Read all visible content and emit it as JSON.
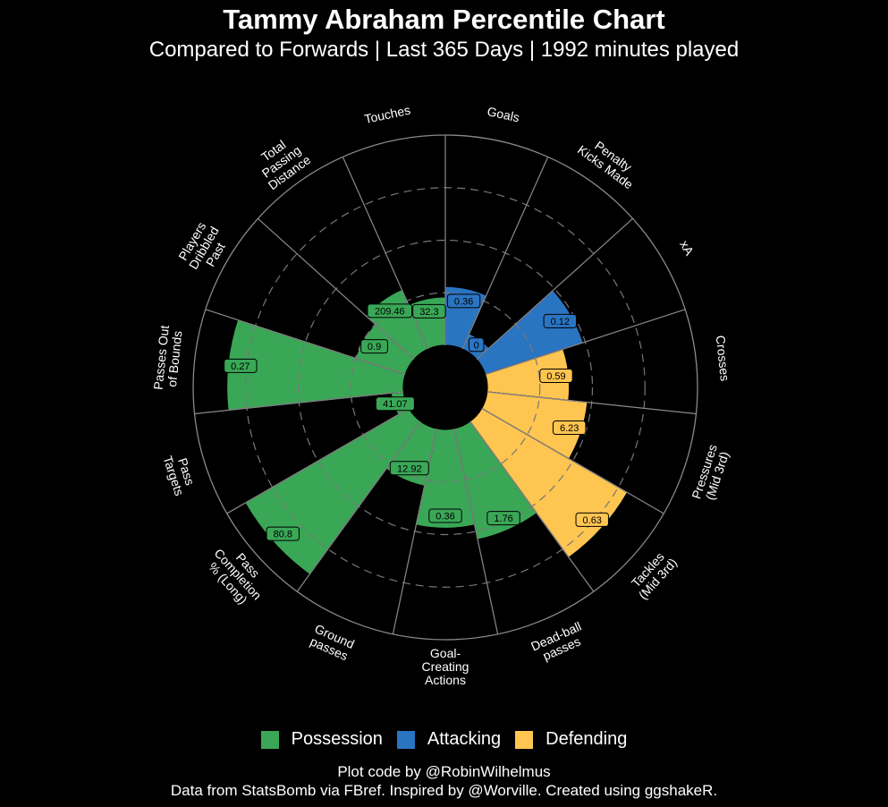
{
  "header": {
    "title": "Tammy Abraham Percentile Chart",
    "subtitle": "Compared to Forwards | Last 365 Days | 1992 minutes played"
  },
  "colors": {
    "Possession": "#3aa757",
    "Attacking": "#2a75c2",
    "Defending": "#ffc551",
    "grid": "#8a8a8a",
    "background": "#000000"
  },
  "legend": {
    "position": "bottom",
    "items": [
      {
        "label": "Possession",
        "color": "#3aa757"
      },
      {
        "label": "Attacking",
        "color": "#2a75c2"
      },
      {
        "label": "Defending",
        "color": "#ffc551"
      }
    ]
  },
  "captions": {
    "line1": "Plot code by @RobinWilhelmus",
    "line2": "Data from StatsBomb via FBref. Inspired by @Worville. Created using ggshakeR."
  },
  "chart_data": {
    "type": "bar",
    "coord": "polar",
    "title": "Tammy Abraham Percentile Chart",
    "subtitle": "Compared to Forwards | Last 365 Days | 1992 minutes played",
    "ylim": [
      0,
      100
    ],
    "grid": true,
    "gridlines": [
      25,
      50,
      75
    ],
    "legend_position": "bottom",
    "categories": [
      {
        "label": [
          "Goals"
        ],
        "group": "Attacking",
        "value_label": "0.36",
        "percentile": 28
      },
      {
        "label": [
          "Penalty",
          "Kicks Made"
        ],
        "group": "Attacking",
        "value_label": "0",
        "percentile": 8
      },
      {
        "label": [
          "xA"
        ],
        "group": "Attacking",
        "value_label": "0.12",
        "percentile": 49
      },
      {
        "label": [
          "Crosses"
        ],
        "group": "Defending",
        "value_label": "0.59",
        "percentile": 39
      },
      {
        "label": [
          "Pressures",
          "(Mid 3rd)"
        ],
        "group": "Defending",
        "value_label": "6.23",
        "percentile": 48
      },
      {
        "label": [
          "Tackles",
          "(Mid 3rd)"
        ],
        "group": "Defending",
        "value_label": "0.63",
        "percentile": 80
      },
      {
        "label": [
          "Dead-ball",
          "passes"
        ],
        "group": "Possession",
        "value_label": "1.76",
        "percentile": 54
      },
      {
        "label": [
          "Goal-",
          "Creating",
          "Actions"
        ],
        "group": "Possession",
        "value_label": "0.36",
        "percentile": 47
      },
      {
        "label": [
          "Ground",
          "passes"
        ],
        "group": "Possession",
        "value_label": "12.92",
        "percentile": 28
      },
      {
        "label": [
          "Pass",
          "Completion",
          "% (Long)"
        ],
        "group": "Possession",
        "value_label": "80.8",
        "percentile": 90
      },
      {
        "label": [
          "Pass",
          "Targets"
        ],
        "group": "Possession",
        "value_label": "41.07",
        "percentile": 6
      },
      {
        "label": [
          "Passes Out",
          "of Bounds"
        ],
        "group": "Possession",
        "value_label": "0.27",
        "percentile": 84
      },
      {
        "label": [
          "Players",
          "Dribbled",
          "Past"
        ],
        "group": "Possession",
        "value_label": "0.9",
        "percentile": 25
      },
      {
        "label": [
          "Total",
          "Passing",
          "Distance"
        ],
        "group": "Possession",
        "value_label": "209.46",
        "percentile": 31
      },
      {
        "label": [
          "Touches"
        ],
        "group": "Possession",
        "value_label": "32.3",
        "percentile": 23
      }
    ]
  }
}
